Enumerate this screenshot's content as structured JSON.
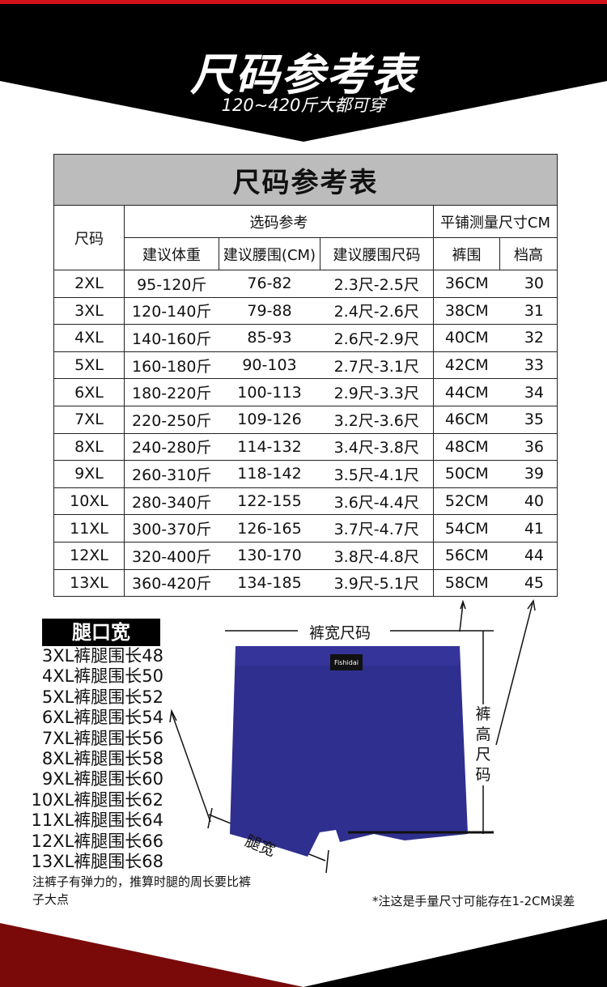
{
  "banner": {
    "title": "尺码参考表",
    "subtitle": "120~420斤大都可穿"
  },
  "table": {
    "title": "尺码参考表",
    "size_header": "尺码",
    "group1": "选码参考",
    "group2": "平铺测量尺寸CM",
    "columns": [
      "建议体重",
      "建议腰围(CM)",
      "建议腰围尺码",
      "裤围",
      "档高"
    ],
    "rows": [
      [
        "2XL",
        "95-120斤",
        "76-82",
        "2.3尺-2.5尺",
        "36CM",
        "30"
      ],
      [
        "3XL",
        "120-140斤",
        "79-88",
        "2.4尺-2.6尺",
        "38CM",
        "31"
      ],
      [
        "4XL",
        "140-160斤",
        "85-93",
        "2.6尺-2.9尺",
        "40CM",
        "32"
      ],
      [
        "5XL",
        "160-180斤",
        "90-103",
        "2.7尺-3.1尺",
        "42CM",
        "33"
      ],
      [
        "6XL",
        "180-220斤",
        "100-113",
        "2.9尺-3.3尺",
        "44CM",
        "34"
      ],
      [
        "7XL",
        "220-250斤",
        "109-126",
        "3.2尺-3.6尺",
        "46CM",
        "35"
      ],
      [
        "8XL",
        "240-280斤",
        "114-132",
        "3.4尺-3.8尺",
        "48CM",
        "36"
      ],
      [
        "9XL",
        "260-310斤",
        "118-142",
        "3.5尺-4.1尺",
        "50CM",
        "39"
      ],
      [
        "10XL",
        "280-340斤",
        "122-155",
        "3.6尺-4.4尺",
        "52CM",
        "40"
      ],
      [
        "11XL",
        "300-370斤",
        "126-165",
        "3.7尺-4.7尺",
        "54CM",
        "41"
      ],
      [
        "12XL",
        "320-400斤",
        "130-170",
        "3.8尺-4.8尺",
        "56CM",
        "44"
      ],
      [
        "13XL",
        "360-420斤",
        "134-185",
        "3.9尺-5.1尺",
        "58CM",
        "45"
      ]
    ]
  },
  "leg": {
    "title": "腿口宽",
    "items": [
      "3XL裤腿围长48",
      "4XL裤腿围长50",
      "5XL裤腿围长52",
      "6XL裤腿围长54",
      "7XL裤腿围长56",
      "8XL裤腿围长58",
      "9XL裤腿围长60",
      "10XL裤腿围长62",
      "11XL裤腿围长64",
      "12XL裤腿围长66",
      "13XL裤腿围长68"
    ]
  },
  "diagram": {
    "width_label": "裤宽尺码",
    "height_label": "裤高尺码",
    "leg_label": "腿宽",
    "brand": "Fishidai"
  },
  "notes": {
    "stretch": "注裤子有弹力的，推算时腿的周长要比裤子大点",
    "error": "*注这是手量尺寸可能存在1-2CM误差"
  },
  "colors": {
    "accent": "#d0101a",
    "garment": "#2f2f8f",
    "footer_red": "#7a0a0a"
  }
}
